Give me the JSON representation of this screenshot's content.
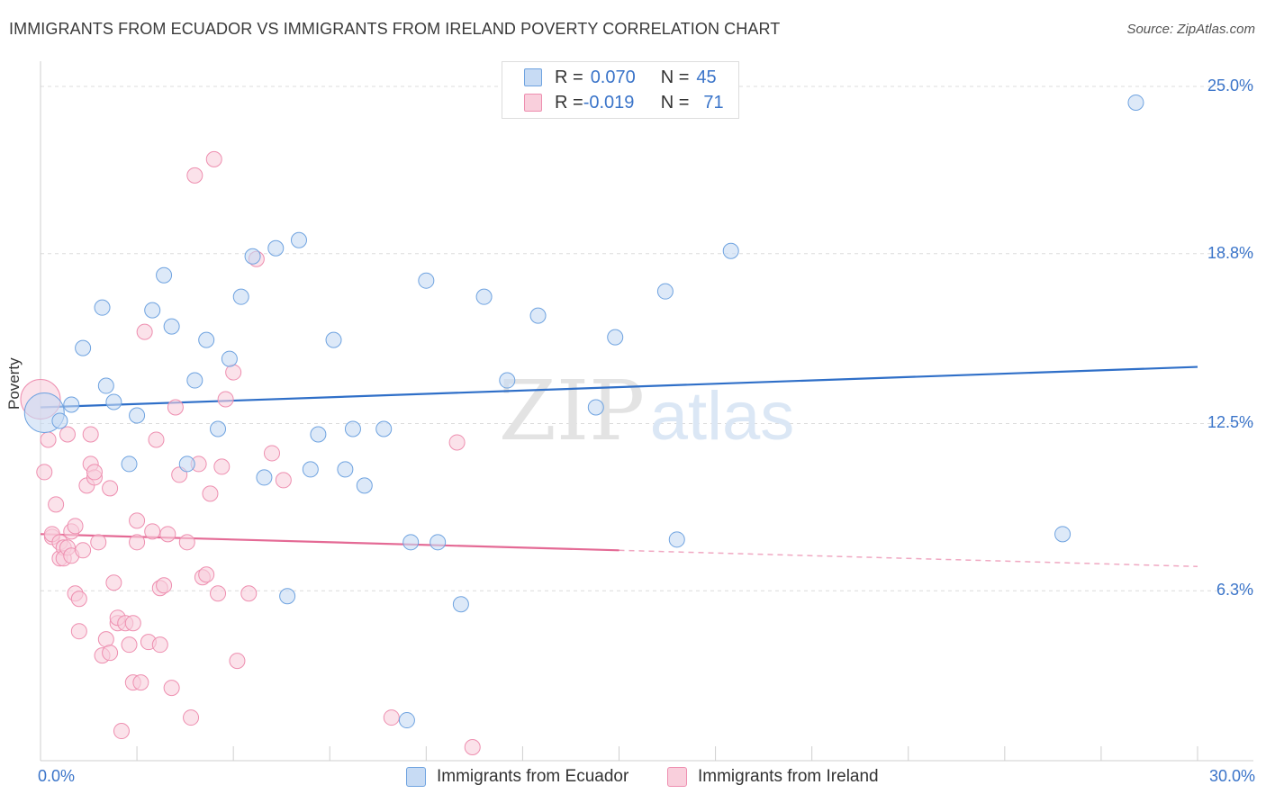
{
  "title": "IMMIGRANTS FROM ECUADOR VS IMMIGRANTS FROM IRELAND POVERTY CORRELATION CHART",
  "source": "Source: ZipAtlas.com",
  "watermark": {
    "zip": "ZIP",
    "atlas": "atlas"
  },
  "legend": {
    "rows": [
      {
        "r_label": "R = ",
        "r_value": "0.070",
        "n_label": "N = ",
        "n_value": "45",
        "color": "#a9c8ee"
      },
      {
        "r_label": "R = ",
        "r_value": "-0.019",
        "n_label": "N = ",
        "n_value": "71",
        "color": "#f7b7cc"
      }
    ]
  },
  "bottom_legend": [
    {
      "label": "Immigrants from Ecuador",
      "color": "#a9c8ee"
    },
    {
      "label": "Immigrants from Ireland",
      "color": "#f7b7cc"
    }
  ],
  "chart_data": {
    "type": "scatter",
    "title": "IMMIGRANTS FROM ECUADOR VS IMMIGRANTS FROM IRELAND POVERTY CORRELATION CHART",
    "xlabel": "",
    "ylabel": "Poverty",
    "xlim": [
      0,
      30
    ],
    "ylim": [
      0,
      25.6
    ],
    "x_tick_labels": [
      "0.0%",
      "30.0%"
    ],
    "y_ticks": [
      6.3,
      12.5,
      18.8,
      25.0
    ],
    "y_tick_labels": [
      "6.3%",
      "12.5%",
      "18.8%",
      "25.0%"
    ],
    "grid": true,
    "legend_position": "top-center",
    "series": [
      {
        "name": "Immigrants from Ecuador",
        "color": "#6fa3e0",
        "fill": "#c7dbf4",
        "trend": {
          "x": [
            0,
            30
          ],
          "y": [
            13.1,
            14.6
          ],
          "color": "#2f6fc8"
        },
        "points": [
          [
            0.1,
            12.9
          ],
          [
            0.5,
            12.6
          ],
          [
            0.8,
            13.2
          ],
          [
            1.1,
            15.3
          ],
          [
            1.6,
            16.8
          ],
          [
            1.7,
            13.9
          ],
          [
            1.9,
            13.3
          ],
          [
            2.3,
            11.0
          ],
          [
            2.5,
            12.8
          ],
          [
            2.9,
            16.7
          ],
          [
            3.2,
            18.0
          ],
          [
            3.4,
            16.1
          ],
          [
            3.8,
            11.0
          ],
          [
            4.0,
            14.1
          ],
          [
            4.3,
            15.6
          ],
          [
            4.6,
            12.3
          ],
          [
            4.9,
            14.9
          ],
          [
            5.2,
            17.2
          ],
          [
            5.5,
            18.7
          ],
          [
            5.8,
            10.5
          ],
          [
            6.1,
            19.0
          ],
          [
            6.4,
            6.1
          ],
          [
            6.7,
            19.3
          ],
          [
            7.0,
            10.8
          ],
          [
            7.2,
            12.1
          ],
          [
            7.6,
            15.6
          ],
          [
            7.9,
            10.8
          ],
          [
            8.1,
            12.3
          ],
          [
            8.4,
            10.2
          ],
          [
            8.9,
            12.3
          ],
          [
            9.5,
            1.5
          ],
          [
            9.6,
            8.1
          ],
          [
            10.0,
            17.8
          ],
          [
            10.3,
            8.1
          ],
          [
            10.9,
            5.8
          ],
          [
            11.5,
            17.2
          ],
          [
            12.1,
            14.1
          ],
          [
            12.9,
            16.5
          ],
          [
            14.4,
            13.1
          ],
          [
            14.9,
            15.7
          ],
          [
            16.2,
            17.4
          ],
          [
            16.5,
            8.2
          ],
          [
            17.9,
            18.9
          ],
          [
            26.5,
            8.4
          ],
          [
            28.4,
            24.4
          ]
        ]
      },
      {
        "name": "Immigrants from Ireland",
        "color": "#ee8fb0",
        "fill": "#f9cfdc",
        "trend": {
          "x": [
            0,
            15
          ],
          "y": [
            8.4,
            7.8
          ],
          "color": "#e46a95"
        },
        "trend_extended": {
          "x": [
            15,
            30
          ],
          "y": [
            7.8,
            7.2
          ],
          "color": "#f0a8c2"
        },
        "points": [
          [
            0.0,
            13.4
          ],
          [
            0.1,
            10.7
          ],
          [
            0.2,
            11.9
          ],
          [
            0.3,
            8.3
          ],
          [
            0.3,
            8.4
          ],
          [
            0.4,
            9.5
          ],
          [
            0.5,
            8.1
          ],
          [
            0.5,
            7.5
          ],
          [
            0.6,
            7.9
          ],
          [
            0.6,
            7.5
          ],
          [
            0.7,
            7.9
          ],
          [
            0.7,
            12.1
          ],
          [
            0.8,
            7.6
          ],
          [
            0.8,
            8.5
          ],
          [
            0.9,
            8.7
          ],
          [
            0.9,
            6.2
          ],
          [
            1.0,
            4.8
          ],
          [
            1.0,
            6.0
          ],
          [
            1.1,
            7.8
          ],
          [
            1.2,
            10.2
          ],
          [
            1.3,
            11.0
          ],
          [
            1.3,
            12.1
          ],
          [
            1.4,
            10.5
          ],
          [
            1.4,
            10.7
          ],
          [
            1.5,
            8.1
          ],
          [
            1.6,
            3.9
          ],
          [
            1.7,
            4.5
          ],
          [
            1.8,
            4.0
          ],
          [
            1.8,
            10.1
          ],
          [
            1.9,
            6.6
          ],
          [
            2.0,
            5.1
          ],
          [
            2.0,
            5.3
          ],
          [
            2.1,
            1.1
          ],
          [
            2.2,
            5.1
          ],
          [
            2.3,
            4.3
          ],
          [
            2.4,
            5.1
          ],
          [
            2.4,
            2.9
          ],
          [
            2.5,
            8.1
          ],
          [
            2.5,
            8.9
          ],
          [
            2.6,
            2.9
          ],
          [
            2.7,
            15.9
          ],
          [
            2.8,
            4.4
          ],
          [
            2.9,
            8.5
          ],
          [
            3.0,
            11.9
          ],
          [
            3.1,
            6.4
          ],
          [
            3.1,
            4.3
          ],
          [
            3.2,
            6.5
          ],
          [
            3.3,
            8.4
          ],
          [
            3.4,
            2.7
          ],
          [
            3.5,
            13.1
          ],
          [
            3.6,
            10.6
          ],
          [
            3.8,
            8.1
          ],
          [
            3.9,
            1.6
          ],
          [
            4.0,
            21.7
          ],
          [
            4.1,
            11.0
          ],
          [
            4.2,
            6.8
          ],
          [
            4.3,
            6.9
          ],
          [
            4.4,
            9.9
          ],
          [
            4.5,
            22.3
          ],
          [
            4.6,
            6.2
          ],
          [
            4.7,
            10.9
          ],
          [
            4.8,
            13.4
          ],
          [
            5.0,
            14.4
          ],
          [
            5.1,
            3.7
          ],
          [
            5.4,
            6.2
          ],
          [
            5.6,
            18.6
          ],
          [
            6.0,
            11.4
          ],
          [
            6.3,
            10.4
          ],
          [
            9.1,
            1.6
          ],
          [
            10.8,
            11.8
          ],
          [
            11.2,
            0.5
          ]
        ]
      }
    ]
  }
}
